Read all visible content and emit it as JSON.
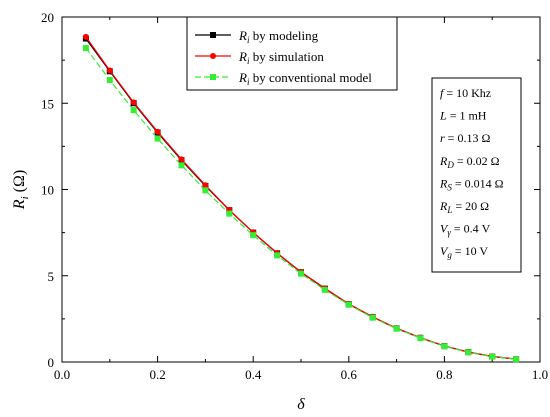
{
  "chart_data": {
    "type": "line",
    "xlabel": "δ",
    "ylabel": "Ri (Ω)",
    "ylabel_main": "R",
    "ylabel_sub": "i",
    "ylabel_unit": " (Ω)",
    "xlim": [
      0.0,
      1.0
    ],
    "ylim": [
      0,
      20
    ],
    "x_ticks": [
      "0.0",
      "0.2",
      "0.4",
      "0.6",
      "0.8",
      "1.0"
    ],
    "y_ticks": [
      "0",
      "5",
      "10",
      "15",
      "20"
    ],
    "grid": false,
    "legend_position": "top-center",
    "series": [
      {
        "name": "Ri by modeling",
        "label_main": "R",
        "label_sub": "i",
        "label_rest": " by modeling",
        "color": "#000000",
        "marker": "square",
        "x": [
          0.05,
          0.1,
          0.15,
          0.2,
          0.25,
          0.3,
          0.35,
          0.4,
          0.45,
          0.5,
          0.55,
          0.6,
          0.65,
          0.7,
          0.75,
          0.8,
          0.85,
          0.9,
          0.95
        ],
        "y": [
          18.75,
          16.85,
          15.0,
          13.3,
          11.7,
          10.2,
          8.8,
          7.5,
          6.3,
          5.2,
          4.25,
          3.35,
          2.6,
          1.95,
          1.4,
          0.92,
          0.57,
          0.32,
          0.16
        ]
      },
      {
        "name": "Ri by simulation",
        "label_main": "R",
        "label_sub": "i",
        "label_rest": " by simulation",
        "color": "#ff0000",
        "marker": "circle",
        "x": [
          0.05,
          0.1,
          0.15,
          0.2,
          0.25,
          0.3,
          0.35,
          0.4,
          0.45,
          0.5,
          0.55,
          0.6,
          0.65,
          0.7,
          0.75,
          0.8,
          0.85,
          0.9,
          0.95
        ],
        "y": [
          18.85,
          16.9,
          15.05,
          13.35,
          11.75,
          10.25,
          8.82,
          7.52,
          6.32,
          5.22,
          4.27,
          3.37,
          2.62,
          1.96,
          1.41,
          0.93,
          0.58,
          0.33,
          0.17
        ]
      },
      {
        "name": "Ri by conventional model",
        "label_main": "R",
        "label_sub": "i",
        "label_rest": " by conventional model",
        "color": "#33ee33",
        "marker": "square",
        "dashed": true,
        "x": [
          0.05,
          0.1,
          0.15,
          0.2,
          0.25,
          0.3,
          0.35,
          0.4,
          0.45,
          0.5,
          0.55,
          0.6,
          0.65,
          0.7,
          0.75,
          0.8,
          0.85,
          0.9,
          0.95
        ],
        "y": [
          18.2,
          16.35,
          14.6,
          12.95,
          11.4,
          9.95,
          8.6,
          7.35,
          6.18,
          5.12,
          4.18,
          3.32,
          2.57,
          1.93,
          1.38,
          0.91,
          0.56,
          0.31,
          0.16
        ]
      }
    ],
    "annotations": [
      {
        "text": "f = 10 Khz",
        "main": "f",
        "sub": "",
        "rest": " = 10 Khz"
      },
      {
        "text": "L = 1 mH",
        "main": "L",
        "sub": "",
        "rest": " = 1 mH"
      },
      {
        "text": "r = 0.13 Ω",
        "main": "r",
        "sub": "",
        "rest": " = 0.13 Ω"
      },
      {
        "text": "RD = 0.02 Ω",
        "main": "R",
        "sub": "D",
        "rest": " = 0.02 Ω"
      },
      {
        "text": "RS = 0.014 Ω",
        "main": "R",
        "sub": "S",
        "rest": " = 0.014 Ω"
      },
      {
        "text": "RL = 20 Ω",
        "main": "R",
        "sub": "L",
        "rest": " = 20 Ω"
      },
      {
        "text": "Vγ = 0.4 V",
        "main": "V",
        "sub": "γ",
        "rest": " = 0.4 V"
      },
      {
        "text": "Vg = 10 V",
        "main": "V",
        "sub": "g",
        "rest": " = 10 V"
      }
    ]
  }
}
